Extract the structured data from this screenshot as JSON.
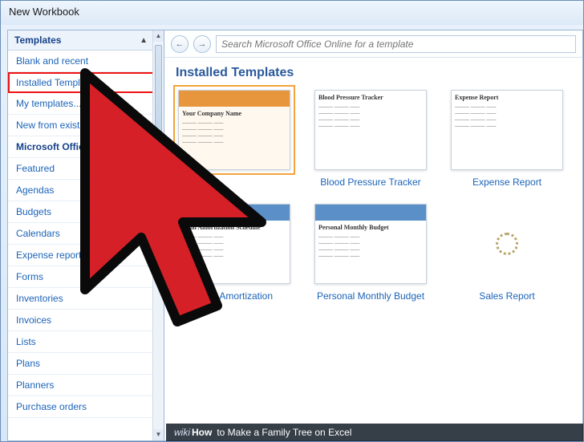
{
  "window": {
    "title": "New Workbook"
  },
  "sidebar": {
    "header": "Templates",
    "items": [
      {
        "label": "Blank and recent",
        "type": "item",
        "highlighted": false
      },
      {
        "label": "Installed Templates",
        "type": "item",
        "highlighted": true
      },
      {
        "label": "My templates...",
        "type": "item",
        "highlighted": false
      },
      {
        "label": "New from existing...",
        "type": "item",
        "highlighted": false
      },
      {
        "label": "Microsoft Office Online",
        "type": "section",
        "highlighted": false
      },
      {
        "label": "Featured",
        "type": "item",
        "highlighted": false
      },
      {
        "label": "Agendas",
        "type": "item",
        "highlighted": false
      },
      {
        "label": "Budgets",
        "type": "item",
        "highlighted": false
      },
      {
        "label": "Calendars",
        "type": "item",
        "highlighted": false
      },
      {
        "label": "Expense reports",
        "type": "item",
        "highlighted": false
      },
      {
        "label": "Forms",
        "type": "item",
        "highlighted": false
      },
      {
        "label": "Inventories",
        "type": "item",
        "highlighted": false
      },
      {
        "label": "Invoices",
        "type": "item",
        "highlighted": false
      },
      {
        "label": "Lists",
        "type": "item",
        "highlighted": false
      },
      {
        "label": "Plans",
        "type": "item",
        "highlighted": false
      },
      {
        "label": "Planners",
        "type": "item",
        "highlighted": false
      },
      {
        "label": "Purchase orders",
        "type": "item",
        "highlighted": false
      }
    ]
  },
  "toolbar": {
    "search_placeholder": "Search Microsoft Office Online for a template"
  },
  "content": {
    "heading": "Installed Templates",
    "templates": [
      {
        "label": "",
        "preview_title": "Your Company Name",
        "band_color": "#e8963e",
        "selected": true
      },
      {
        "label": "Blood Pressure Tracker",
        "preview_title": "Blood Pressure Tracker",
        "band_color": null,
        "selected": false
      },
      {
        "label": "Expense Report",
        "preview_title": "Expense Report",
        "band_color": null,
        "selected": false
      },
      {
        "label": "Loan Amortization",
        "preview_title": "Loan Amortization Schedule",
        "band_color": "#5b8fc7",
        "selected": false
      },
      {
        "label": "Personal Monthly Budget",
        "preview_title": "Personal Monthly Budget",
        "band_color": "#5b8fc7",
        "selected": false
      },
      {
        "label": "Sales Report",
        "preview_title": "",
        "band_color": null,
        "loading": true
      }
    ]
  },
  "caption": {
    "prefix1": "wiki",
    "prefix2": "How",
    "text": "to Make a Family Tree on Excel"
  },
  "colors": {
    "window_border": "#6a8db8",
    "link": "#1b63b8",
    "heading": "#2a5a9c",
    "highlight_border": "#e11",
    "cursor_fill": "#d62027",
    "cursor_stroke": "#0a0a0a",
    "selected_outline": "#f2a33c"
  }
}
